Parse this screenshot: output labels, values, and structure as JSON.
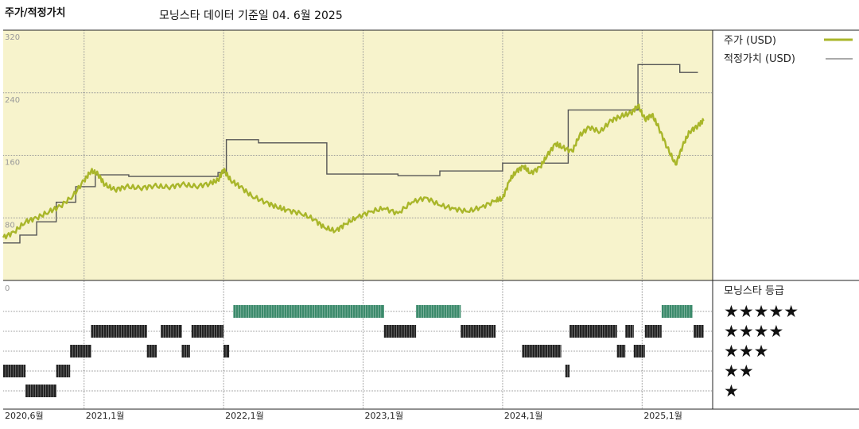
{
  "header": {
    "left_title": "주가/적정가치",
    "subtitle": "모닝스타 데이터 기준일 04. 6월 2025"
  },
  "colors": {
    "panel_bg": "#f7f3cc",
    "price": "#a9b62a",
    "fair_value": "#555555",
    "rating_5": "#3b8a6b",
    "rating_other": "#222222",
    "grid": "#999999"
  },
  "chart_data": {
    "type": "line",
    "ylim": [
      0,
      320
    ],
    "yticks": [
      "320",
      "240",
      "160",
      "80"
    ],
    "xlabels": [
      "2020,6월",
      "2021,1월",
      "2022,1월",
      "2023,1월",
      "2024,1월",
      "2025,1월"
    ],
    "xlabel_dates": [
      2020.42,
      2021.0,
      2022.0,
      2023.0,
      2024.0,
      2025.0
    ],
    "x_range": [
      2020.42,
      2025.46
    ],
    "series": [
      {
        "name": "주가 (USD)",
        "points": [
          [
            2020.42,
            55
          ],
          [
            2020.5,
            62
          ],
          [
            2020.58,
            75
          ],
          [
            2020.66,
            80
          ],
          [
            2020.75,
            88
          ],
          [
            2020.83,
            95
          ],
          [
            2020.92,
            108
          ],
          [
            2021.0,
            128
          ],
          [
            2021.05,
            140
          ],
          [
            2021.1,
            136
          ],
          [
            2021.15,
            122
          ],
          [
            2021.22,
            116
          ],
          [
            2021.3,
            120
          ],
          [
            2021.4,
            118
          ],
          [
            2021.5,
            121
          ],
          [
            2021.6,
            119
          ],
          [
            2021.7,
            123
          ],
          [
            2021.8,
            120
          ],
          [
            2021.9,
            124
          ],
          [
            2021.96,
            128
          ],
          [
            2022.0,
            142
          ],
          [
            2022.05,
            128
          ],
          [
            2022.12,
            120
          ],
          [
            2022.2,
            108
          ],
          [
            2022.3,
            100
          ],
          [
            2022.38,
            94
          ],
          [
            2022.45,
            90
          ],
          [
            2022.55,
            86
          ],
          [
            2022.65,
            78
          ],
          [
            2022.72,
            68
          ],
          [
            2022.8,
            63
          ],
          [
            2022.87,
            72
          ],
          [
            2022.95,
            80
          ],
          [
            2023.05,
            88
          ],
          [
            2023.15,
            92
          ],
          [
            2023.25,
            86
          ],
          [
            2023.35,
            100
          ],
          [
            2023.45,
            106
          ],
          [
            2023.55,
            96
          ],
          [
            2023.65,
            92
          ],
          [
            2023.75,
            88
          ],
          [
            2023.85,
            94
          ],
          [
            2023.95,
            102
          ],
          [
            2024.0,
            105
          ],
          [
            2024.05,
            128
          ],
          [
            2024.1,
            140
          ],
          [
            2024.15,
            146
          ],
          [
            2024.2,
            137
          ],
          [
            2024.27,
            145
          ],
          [
            2024.32,
            160
          ],
          [
            2024.38,
            175
          ],
          [
            2024.43,
            170
          ],
          [
            2024.5,
            165
          ],
          [
            2024.55,
            185
          ],
          [
            2024.62,
            196
          ],
          [
            2024.7,
            190
          ],
          [
            2024.78,
            205
          ],
          [
            2024.85,
            210
          ],
          [
            2024.92,
            214
          ],
          [
            2024.97,
            224
          ],
          [
            2025.02,
            206
          ],
          [
            2025.07,
            212
          ],
          [
            2025.12,
            195
          ],
          [
            2025.18,
            170
          ],
          [
            2025.24,
            148
          ],
          [
            2025.29,
            172
          ],
          [
            2025.34,
            190
          ],
          [
            2025.4,
            198
          ],
          [
            2025.44,
            204
          ]
        ]
      },
      {
        "name": "적정가치 (USD)",
        "points": [
          [
            2020.42,
            48
          ],
          [
            2020.54,
            48
          ],
          [
            2020.54,
            58
          ],
          [
            2020.66,
            58
          ],
          [
            2020.66,
            75
          ],
          [
            2020.8,
            75
          ],
          [
            2020.8,
            100
          ],
          [
            2020.94,
            100
          ],
          [
            2020.94,
            120
          ],
          [
            2021.08,
            120
          ],
          [
            2021.08,
            135
          ],
          [
            2021.32,
            135
          ],
          [
            2021.32,
            133
          ],
          [
            2021.96,
            133
          ],
          [
            2021.96,
            138
          ],
          [
            2022.02,
            138
          ],
          [
            2022.02,
            180
          ],
          [
            2022.25,
            180
          ],
          [
            2022.25,
            176
          ],
          [
            2022.74,
            176
          ],
          [
            2022.74,
            136
          ],
          [
            2023.25,
            136
          ],
          [
            2023.25,
            134
          ],
          [
            2023.55,
            134
          ],
          [
            2023.55,
            140
          ],
          [
            2024.0,
            140
          ],
          [
            2024.0,
            150
          ],
          [
            2024.47,
            150
          ],
          [
            2024.47,
            218
          ],
          [
            2024.97,
            218
          ],
          [
            2024.97,
            276
          ],
          [
            2025.27,
            276
          ],
          [
            2025.27,
            266
          ],
          [
            2025.4,
            266
          ]
        ]
      }
    ],
    "legend": {
      "placement": "right",
      "entries": [
        "주가 (USD)",
        "적정가치 (USD)"
      ]
    }
  },
  "ratings": {
    "title": "모닝스타 등급",
    "star_labels": [
      "★★★★★",
      "★★★★",
      "★★★",
      "★★",
      "★"
    ],
    "y_axis_tick": "0",
    "segments": [
      {
        "from": 2020.42,
        "to": 2020.58,
        "stars": 2
      },
      {
        "from": 2020.58,
        "to": 2020.8,
        "stars": 1
      },
      {
        "from": 2020.8,
        "to": 2020.9,
        "stars": 2
      },
      {
        "from": 2020.9,
        "to": 2021.05,
        "stars": 3
      },
      {
        "from": 2021.05,
        "to": 2021.45,
        "stars": 4
      },
      {
        "from": 2021.45,
        "to": 2021.52,
        "stars": 3
      },
      {
        "from": 2021.55,
        "to": 2021.7,
        "stars": 4
      },
      {
        "from": 2021.7,
        "to": 2021.76,
        "stars": 3
      },
      {
        "from": 2021.77,
        "to": 2022.0,
        "stars": 4
      },
      {
        "from": 2022.0,
        "to": 2022.04,
        "stars": 3
      },
      {
        "from": 2022.07,
        "to": 2023.15,
        "stars": 5
      },
      {
        "from": 2023.15,
        "to": 2023.38,
        "stars": 4
      },
      {
        "from": 2023.38,
        "to": 2023.7,
        "stars": 5
      },
      {
        "from": 2023.7,
        "to": 2023.95,
        "stars": 4
      },
      {
        "from": 2024.14,
        "to": 2024.42,
        "stars": 3
      },
      {
        "from": 2024.45,
        "to": 2024.48,
        "stars": 2
      },
      {
        "from": 2024.48,
        "to": 2024.82,
        "stars": 4
      },
      {
        "from": 2024.82,
        "to": 2024.88,
        "stars": 3
      },
      {
        "from": 2024.88,
        "to": 2024.94,
        "stars": 4
      },
      {
        "from": 2024.94,
        "to": 2025.02,
        "stars": 3
      },
      {
        "from": 2025.02,
        "to": 2025.14,
        "stars": 4
      },
      {
        "from": 2025.14,
        "to": 2025.36,
        "stars": 5
      },
      {
        "from": 2025.37,
        "to": 2025.44,
        "stars": 4
      }
    ]
  }
}
